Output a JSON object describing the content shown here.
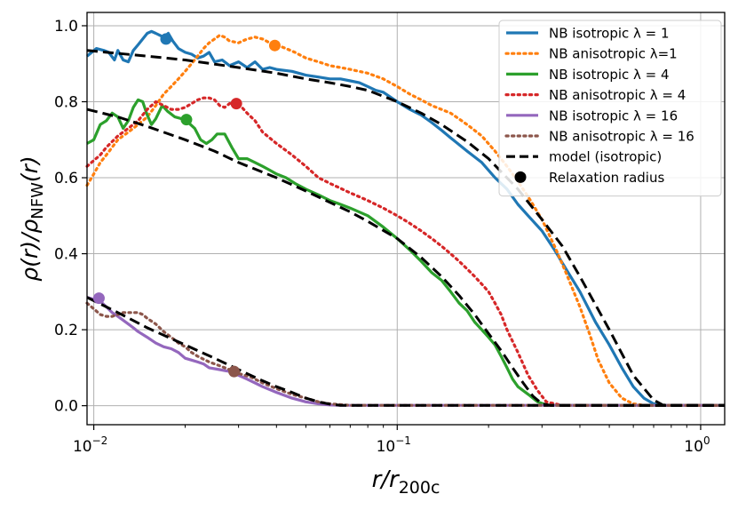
{
  "chart_data": {
    "type": "line",
    "xscale": "log",
    "xlim": [
      0.0095,
      1.2
    ],
    "ylim": [
      -0.05,
      1.035
    ],
    "grid": true,
    "legend_position": "upper right",
    "xlabel": {
      "main": "r/r",
      "sub": "200c"
    },
    "ylabel": {
      "pre": "ρ(r)/ρ",
      "sub": "NFW",
      "post": "(r)"
    },
    "x_ticks": [
      {
        "value": 0.01,
        "base": "10",
        "exp": "−2"
      },
      {
        "value": 0.1,
        "base": "10",
        "exp": "−1"
      },
      {
        "value": 1,
        "base": "10",
        "exp": "0"
      }
    ],
    "y_ticks": [
      {
        "value": 0.0,
        "label": "0.0"
      },
      {
        "value": 0.2,
        "label": "0.2"
      },
      {
        "value": 0.4,
        "label": "0.4"
      },
      {
        "value": 0.6,
        "label": "0.6"
      },
      {
        "value": 0.8,
        "label": "0.8"
      },
      {
        "value": 1.0,
        "label": "1.0"
      }
    ],
    "series": [
      {
        "name": "NB isotropic λ = 1",
        "color": "#1f77b4",
        "style": "solid",
        "x": [
          0.0095,
          0.0102,
          0.0108,
          0.0112,
          0.0117,
          0.012,
          0.0125,
          0.013,
          0.0135,
          0.014,
          0.0145,
          0.015,
          0.0155,
          0.016,
          0.0165,
          0.017,
          0.0176,
          0.0182,
          0.019,
          0.02,
          0.021,
          0.022,
          0.023,
          0.024,
          0.025,
          0.0265,
          0.028,
          0.03,
          0.032,
          0.034,
          0.036,
          0.038,
          0.04,
          0.045,
          0.05,
          0.055,
          0.06,
          0.065,
          0.07,
          0.075,
          0.08,
          0.085,
          0.09,
          0.1,
          0.11,
          0.12,
          0.13,
          0.14,
          0.15,
          0.17,
          0.19,
          0.21,
          0.23,
          0.25,
          0.27,
          0.3,
          0.33,
          0.36,
          0.4,
          0.45,
          0.5,
          0.55,
          0.6,
          0.65,
          0.7,
          0.75,
          0.8,
          0.9,
          1.0,
          1.2
        ],
        "y": [
          0.92,
          0.94,
          0.935,
          0.93,
          0.91,
          0.935,
          0.91,
          0.905,
          0.935,
          0.95,
          0.965,
          0.98,
          0.985,
          0.98,
          0.975,
          0.97,
          0.98,
          0.96,
          0.94,
          0.93,
          0.925,
          0.915,
          0.92,
          0.93,
          0.905,
          0.91,
          0.895,
          0.905,
          0.89,
          0.905,
          0.885,
          0.89,
          0.885,
          0.88,
          0.87,
          0.865,
          0.86,
          0.86,
          0.855,
          0.85,
          0.84,
          0.83,
          0.825,
          0.8,
          0.78,
          0.765,
          0.745,
          0.725,
          0.705,
          0.67,
          0.64,
          0.6,
          0.57,
          0.53,
          0.5,
          0.46,
          0.41,
          0.36,
          0.3,
          0.22,
          0.16,
          0.1,
          0.05,
          0.02,
          0.005,
          0.001,
          0.001,
          0.001,
          0.001,
          0.001
        ]
      },
      {
        "name": "NB anisotropic λ=1",
        "color": "#ff7f0e",
        "style": "dotted",
        "x": [
          0.0095,
          0.01,
          0.0105,
          0.011,
          0.0115,
          0.012,
          0.013,
          0.014,
          0.015,
          0.016,
          0.017,
          0.018,
          0.019,
          0.02,
          0.021,
          0.022,
          0.023,
          0.024,
          0.025,
          0.026,
          0.027,
          0.028,
          0.03,
          0.032,
          0.034,
          0.036,
          0.038,
          0.04,
          0.043,
          0.046,
          0.05,
          0.055,
          0.06,
          0.065,
          0.07,
          0.08,
          0.09,
          0.1,
          0.11,
          0.12,
          0.13,
          0.15,
          0.17,
          0.19,
          0.21,
          0.23,
          0.25,
          0.27,
          0.3,
          0.33,
          0.36,
          0.4,
          0.43,
          0.46,
          0.5,
          0.55,
          0.6,
          0.65,
          0.7,
          0.8,
          1.0,
          1.2
        ],
        "y": [
          0.58,
          0.61,
          0.64,
          0.66,
          0.68,
          0.7,
          0.72,
          0.74,
          0.76,
          0.79,
          0.82,
          0.84,
          0.86,
          0.88,
          0.9,
          0.92,
          0.94,
          0.955,
          0.965,
          0.975,
          0.97,
          0.96,
          0.955,
          0.965,
          0.97,
          0.965,
          0.955,
          0.95,
          0.94,
          0.93,
          0.915,
          0.905,
          0.895,
          0.89,
          0.885,
          0.875,
          0.86,
          0.84,
          0.82,
          0.805,
          0.79,
          0.77,
          0.74,
          0.71,
          0.67,
          0.63,
          0.59,
          0.55,
          0.49,
          0.42,
          0.35,
          0.26,
          0.19,
          0.12,
          0.06,
          0.02,
          0.005,
          0.001,
          0.001,
          0.001,
          0.001,
          0.001
        ]
      },
      {
        "name": "NB isotropic λ = 4",
        "color": "#2ca02c",
        "style": "solid",
        "x": [
          0.0095,
          0.01,
          0.0105,
          0.011,
          0.0115,
          0.012,
          0.0125,
          0.013,
          0.0135,
          0.014,
          0.0145,
          0.015,
          0.0155,
          0.016,
          0.0168,
          0.0175,
          0.0185,
          0.0195,
          0.0205,
          0.0215,
          0.0225,
          0.0235,
          0.0245,
          0.0255,
          0.027,
          0.0285,
          0.03,
          0.032,
          0.034,
          0.036,
          0.038,
          0.04,
          0.043,
          0.046,
          0.05,
          0.055,
          0.06,
          0.065,
          0.07,
          0.08,
          0.09,
          0.1,
          0.11,
          0.12,
          0.13,
          0.14,
          0.15,
          0.16,
          0.17,
          0.18,
          0.19,
          0.2,
          0.21,
          0.22,
          0.23,
          0.24,
          0.25,
          0.27,
          0.29,
          0.31,
          0.35,
          0.45,
          0.6,
          1.0,
          1.2
        ],
        "y": [
          0.69,
          0.7,
          0.74,
          0.75,
          0.77,
          0.76,
          0.73,
          0.75,
          0.785,
          0.805,
          0.8,
          0.765,
          0.74,
          0.755,
          0.79,
          0.775,
          0.76,
          0.755,
          0.745,
          0.73,
          0.7,
          0.69,
          0.7,
          0.715,
          0.715,
          0.68,
          0.65,
          0.65,
          0.64,
          0.63,
          0.62,
          0.61,
          0.6,
          0.585,
          0.57,
          0.555,
          0.54,
          0.53,
          0.52,
          0.5,
          0.47,
          0.44,
          0.41,
          0.38,
          0.35,
          0.33,
          0.3,
          0.27,
          0.25,
          0.22,
          0.2,
          0.18,
          0.16,
          0.13,
          0.1,
          0.07,
          0.05,
          0.03,
          0.01,
          0.002,
          0.001,
          0.001,
          0.001,
          0.001,
          0.001
        ]
      },
      {
        "name": "NB anisotropic λ = 4",
        "color": "#d62728",
        "style": "dotted",
        "x": [
          0.0095,
          0.0105,
          0.011,
          0.012,
          0.013,
          0.014,
          0.015,
          0.016,
          0.017,
          0.018,
          0.019,
          0.02,
          0.021,
          0.022,
          0.023,
          0.024,
          0.025,
          0.026,
          0.027,
          0.028,
          0.029,
          0.03,
          0.032,
          0.034,
          0.036,
          0.04,
          0.045,
          0.05,
          0.055,
          0.06,
          0.07,
          0.08,
          0.09,
          0.1,
          0.11,
          0.12,
          0.13,
          0.14,
          0.15,
          0.16,
          0.17,
          0.18,
          0.19,
          0.2,
          0.21,
          0.22,
          0.23,
          0.25,
          0.27,
          0.29,
          0.31,
          0.35,
          0.45,
          0.6,
          1.0,
          1.2
        ],
        "y": [
          0.63,
          0.66,
          0.68,
          0.71,
          0.73,
          0.75,
          0.78,
          0.8,
          0.79,
          0.78,
          0.78,
          0.785,
          0.795,
          0.805,
          0.81,
          0.81,
          0.805,
          0.79,
          0.785,
          0.795,
          0.8,
          0.795,
          0.77,
          0.75,
          0.72,
          0.69,
          0.66,
          0.63,
          0.6,
          0.585,
          0.56,
          0.54,
          0.52,
          0.5,
          0.48,
          0.46,
          0.44,
          0.42,
          0.4,
          0.38,
          0.36,
          0.34,
          0.32,
          0.3,
          0.27,
          0.24,
          0.2,
          0.14,
          0.08,
          0.04,
          0.01,
          0.001,
          0.001,
          0.001,
          0.001,
          0.001
        ]
      },
      {
        "name": "NB isotropic λ = 16",
        "color": "#9467bd",
        "style": "solid",
        "x": [
          0.0095,
          0.0105,
          0.011,
          0.0115,
          0.012,
          0.0125,
          0.013,
          0.0135,
          0.014,
          0.015,
          0.016,
          0.017,
          0.018,
          0.019,
          0.02,
          0.021,
          0.022,
          0.023,
          0.024,
          0.026,
          0.028,
          0.03,
          0.032,
          0.034,
          0.036,
          0.04,
          0.045,
          0.05,
          0.055,
          0.06,
          0.065,
          0.07,
          0.08,
          0.1,
          0.3,
          1.0,
          1.2
        ],
        "y": [
          0.285,
          0.275,
          0.26,
          0.245,
          0.235,
          0.225,
          0.215,
          0.205,
          0.195,
          0.18,
          0.165,
          0.155,
          0.15,
          0.14,
          0.125,
          0.12,
          0.115,
          0.11,
          0.1,
          0.095,
          0.09,
          0.08,
          0.07,
          0.06,
          0.05,
          0.035,
          0.02,
          0.01,
          0.005,
          0.002,
          0.001,
          0.001,
          0.001,
          0.001,
          0.001,
          0.001,
          0.001
        ]
      },
      {
        "name": "NB anisotropic λ = 16",
        "color": "#8c564b",
        "style": "dotted",
        "x": [
          0.0095,
          0.01,
          0.0105,
          0.011,
          0.0115,
          0.012,
          0.0125,
          0.013,
          0.0135,
          0.014,
          0.0145,
          0.015,
          0.016,
          0.017,
          0.018,
          0.019,
          0.02,
          0.021,
          0.022,
          0.024,
          0.026,
          0.028,
          0.03,
          0.033,
          0.036,
          0.04,
          0.045,
          0.05,
          0.055,
          0.06,
          0.07,
          0.08,
          0.1,
          0.3,
          1.0,
          1.2
        ],
        "y": [
          0.27,
          0.255,
          0.24,
          0.235,
          0.235,
          0.24,
          0.245,
          0.245,
          0.245,
          0.245,
          0.24,
          0.23,
          0.215,
          0.195,
          0.18,
          0.165,
          0.155,
          0.14,
          0.13,
          0.115,
          0.105,
          0.095,
          0.085,
          0.075,
          0.06,
          0.045,
          0.03,
          0.02,
          0.01,
          0.005,
          0.001,
          0.001,
          0.001,
          0.001,
          0.001,
          0.001
        ]
      },
      {
        "name": "model (isotropic)",
        "color": "#000000",
        "style": "dashed",
        "x": [
          0.0095,
          0.015,
          0.02,
          0.03,
          0.04,
          0.05,
          0.06,
          0.07,
          0.08,
          0.1,
          0.12,
          0.14,
          0.17,
          0.2,
          0.25,
          0.3,
          0.35,
          0.4,
          0.5,
          0.6,
          0.7,
          0.75,
          0.8,
          1.0,
          1.2
        ],
        "y": [
          0.935,
          0.92,
          0.91,
          0.89,
          0.875,
          0.86,
          0.85,
          0.84,
          0.83,
          0.8,
          0.77,
          0.74,
          0.695,
          0.65,
          0.57,
          0.49,
          0.42,
          0.34,
          0.2,
          0.08,
          0.015,
          0.002,
          0.001,
          0.001,
          0.001
        ]
      },
      {
        "name": "",
        "color": "#000000",
        "style": "dashed",
        "x": [
          0.0095,
          0.012,
          0.015,
          0.02,
          0.025,
          0.03,
          0.04,
          0.05,
          0.06,
          0.07,
          0.08,
          0.1,
          0.12,
          0.14,
          0.16,
          0.18,
          0.2,
          0.22,
          0.24,
          0.26,
          0.28,
          0.3,
          0.32,
          0.35,
          1.2
        ],
        "y": [
          0.78,
          0.76,
          0.735,
          0.7,
          0.67,
          0.64,
          0.6,
          0.565,
          0.535,
          0.51,
          0.485,
          0.44,
          0.39,
          0.34,
          0.29,
          0.24,
          0.19,
          0.145,
          0.1,
          0.06,
          0.025,
          0.005,
          0.001,
          0.001,
          0.001
        ]
      },
      {
        "name": "",
        "color": "#000000",
        "style": "dashed",
        "x": [
          0.0095,
          0.012,
          0.015,
          0.02,
          0.025,
          0.03,
          0.035,
          0.04,
          0.045,
          0.05,
          0.055,
          0.06,
          0.065,
          0.07,
          0.08,
          0.1,
          1.2
        ],
        "y": [
          0.285,
          0.245,
          0.205,
          0.16,
          0.125,
          0.095,
          0.07,
          0.05,
          0.035,
          0.02,
          0.01,
          0.004,
          0.001,
          0.001,
          0.001,
          0.001,
          0.001
        ]
      }
    ],
    "markers": [
      {
        "x": 0.0173,
        "y": 0.965,
        "color": "#1f77b4"
      },
      {
        "x": 0.0395,
        "y": 0.948,
        "color": "#ff7f0e"
      },
      {
        "x": 0.0202,
        "y": 0.753,
        "color": "#2ca02c"
      },
      {
        "x": 0.0295,
        "y": 0.795,
        "color": "#d62728"
      },
      {
        "x": 0.0104,
        "y": 0.283,
        "color": "#9467bd"
      },
      {
        "x": 0.029,
        "y": 0.09,
        "color": "#8c564b"
      }
    ],
    "legend": [
      {
        "label": "NB isotropic λ = 1",
        "color": "#1f77b4",
        "style": "solid"
      },
      {
        "label": "NB anisotropic λ=1",
        "color": "#ff7f0e",
        "style": "dotted"
      },
      {
        "label": "NB isotropic λ = 4",
        "color": "#2ca02c",
        "style": "solid"
      },
      {
        "label": "NB anisotropic λ = 4",
        "color": "#d62728",
        "style": "dotted"
      },
      {
        "label": "NB isotropic λ = 16",
        "color": "#9467bd",
        "style": "solid"
      },
      {
        "label": "NB anisotropic λ = 16",
        "color": "#8c564b",
        "style": "dotted"
      },
      {
        "label": "model (isotropic)",
        "color": "#000000",
        "style": "dashed"
      },
      {
        "label": "Relaxation radius",
        "color": "#000000",
        "style": "marker"
      }
    ]
  }
}
